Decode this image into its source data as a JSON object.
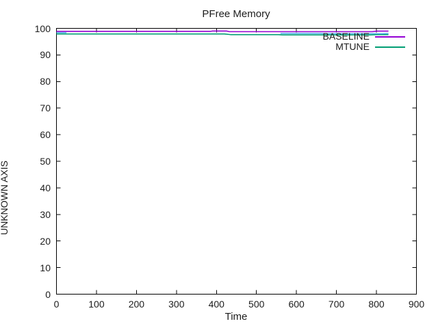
{
  "window": {
    "background": "#ffffff",
    "text_color": "#1c1c1c"
  },
  "chart_data": {
    "type": "line",
    "title": "PFree Memory",
    "xlabel": "Time",
    "ylabel": "UNKNOWN AXIS",
    "xlim": [
      0,
      900
    ],
    "ylim": [
      0,
      100
    ],
    "x_ticks": [
      0,
      100,
      200,
      300,
      400,
      500,
      600,
      700,
      800,
      900
    ],
    "y_ticks": [
      0,
      10,
      20,
      30,
      40,
      50,
      60,
      70,
      80,
      90,
      100
    ],
    "grid": false,
    "tick_style": "inward-mirrored",
    "border_color": "#000000",
    "legend_position": "inside-top-right",
    "series": [
      {
        "name": "BASELINE",
        "color": "#9400d3",
        "in_legend": true,
        "points": [
          [
            0,
            98.85
          ],
          [
            200,
            98.85
          ],
          [
            385,
            98.85
          ],
          [
            390,
            99.0
          ],
          [
            425,
            99.0
          ],
          [
            432,
            98.75
          ],
          [
            600,
            98.75
          ],
          [
            700,
            98.75
          ],
          [
            790,
            98.75
          ],
          [
            800,
            98.95
          ],
          [
            830,
            98.95
          ]
        ]
      },
      {
        "name": "MTUNE",
        "color": "#009e73",
        "in_legend": true,
        "points": [
          [
            0,
            97.9
          ],
          [
            200,
            97.9
          ],
          [
            420,
            97.9
          ],
          [
            435,
            97.65
          ],
          [
            555,
            97.65
          ],
          [
            565,
            97.55
          ],
          [
            700,
            97.55
          ],
          [
            785,
            97.55
          ],
          [
            800,
            97.65
          ],
          [
            830,
            97.65
          ]
        ]
      },
      {
        "name": "",
        "color": "#56b4e9",
        "in_legend": false,
        "points": [
          [
            0,
            98.4
          ],
          [
            25,
            98.4
          ],
          null,
          [
            560,
            98.1
          ],
          [
            660,
            98.1
          ],
          [
            672,
            98.0
          ],
          [
            815,
            98.0
          ],
          [
            830,
            98.1
          ]
        ]
      }
    ]
  }
}
